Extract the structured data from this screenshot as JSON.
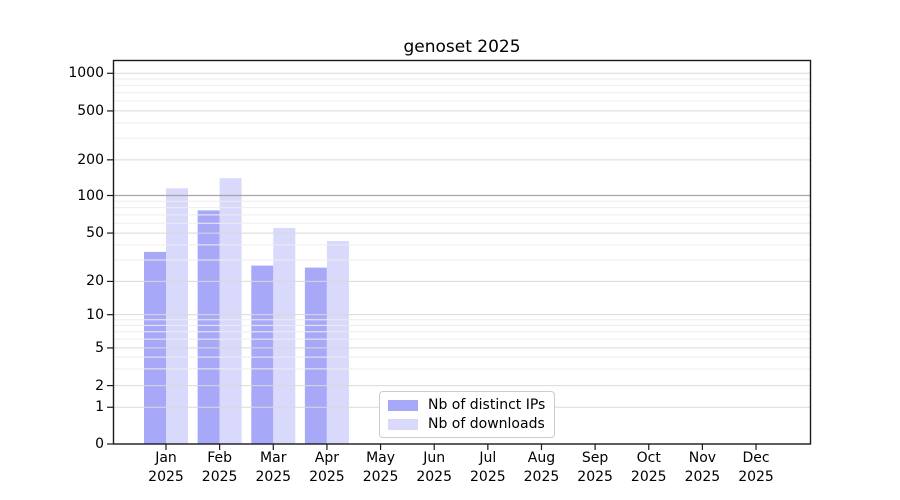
{
  "chart_data": {
    "type": "bar",
    "title": "genoset 2025",
    "x_months": [
      "Jan",
      "Feb",
      "Mar",
      "Apr",
      "May",
      "Jun",
      "Jul",
      "Aug",
      "Sep",
      "Oct",
      "Nov",
      "Dec"
    ],
    "x_year": "2025",
    "series": [
      {
        "name": "Nb of distinct IPs",
        "color": "#a8a8f8",
        "values": [
          35,
          76,
          27,
          26,
          null,
          null,
          null,
          null,
          null,
          null,
          null,
          null
        ]
      },
      {
        "name": "Nb of downloads",
        "color": "#d9d9fb",
        "values": [
          115,
          140,
          55,
          43,
          null,
          null,
          null,
          null,
          null,
          null,
          null,
          null
        ]
      }
    ],
    "yscale": "symlog",
    "yticks": [
      0,
      1,
      2,
      5,
      10,
      20,
      50,
      100,
      200,
      500,
      1000
    ],
    "minor_yticks": [
      3,
      4,
      6,
      7,
      8,
      9,
      30,
      40,
      60,
      70,
      80,
      90,
      300,
      400,
      600,
      700,
      800,
      900
    ],
    "ylim": [
      0,
      1290
    ],
    "grid": true,
    "ref_line_y": 100,
    "legend_position": "lower-center"
  },
  "colors": {
    "bar_distinct_ips": "#a8a8f8",
    "bar_downloads": "#d9d9fb",
    "axis_frame": "#1a1a1a",
    "grid_major": "#d9d9d9",
    "grid_minor": "#ededed",
    "ref_line": "#a6a6a6",
    "legend_border": "#cccccc",
    "background": "#ffffff"
  }
}
